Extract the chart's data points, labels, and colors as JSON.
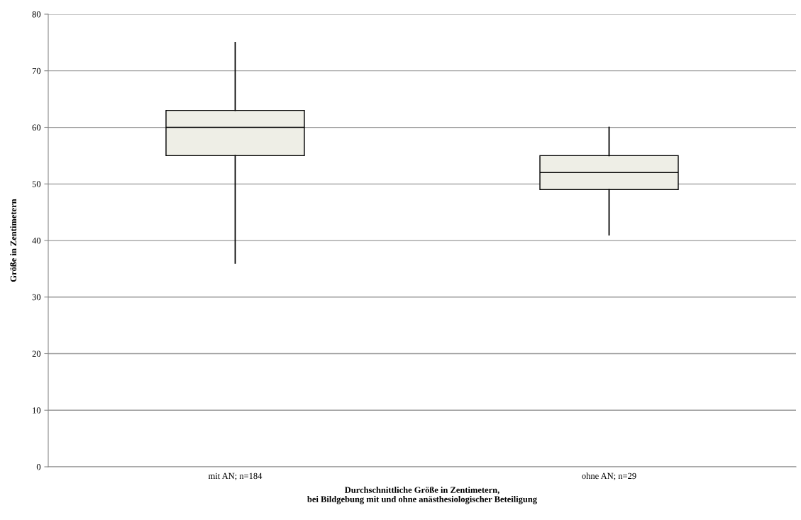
{
  "chart_data": {
    "type": "box",
    "categories": [
      "mit AN; n=184",
      "ohne AN; n=29"
    ],
    "boxes": [
      {
        "low": 36,
        "q1": 55,
        "median": 60,
        "q3": 63,
        "high": 75
      },
      {
        "low": 41,
        "q1": 49,
        "median": 52,
        "q3": 55,
        "high": 60
      }
    ],
    "color": "#eeeee6",
    "ylabel": "Größe in Zentimetern",
    "xlabel": "Durchschnittliche Größe in Zentimetern,\nbei Bildgebung mit und ohne anästhesiologischer Beteiligung",
    "ylim": [
      0,
      80
    ],
    "yticks": [
      0,
      10,
      20,
      30,
      40,
      50,
      60,
      70,
      80
    ],
    "grid": "y"
  }
}
